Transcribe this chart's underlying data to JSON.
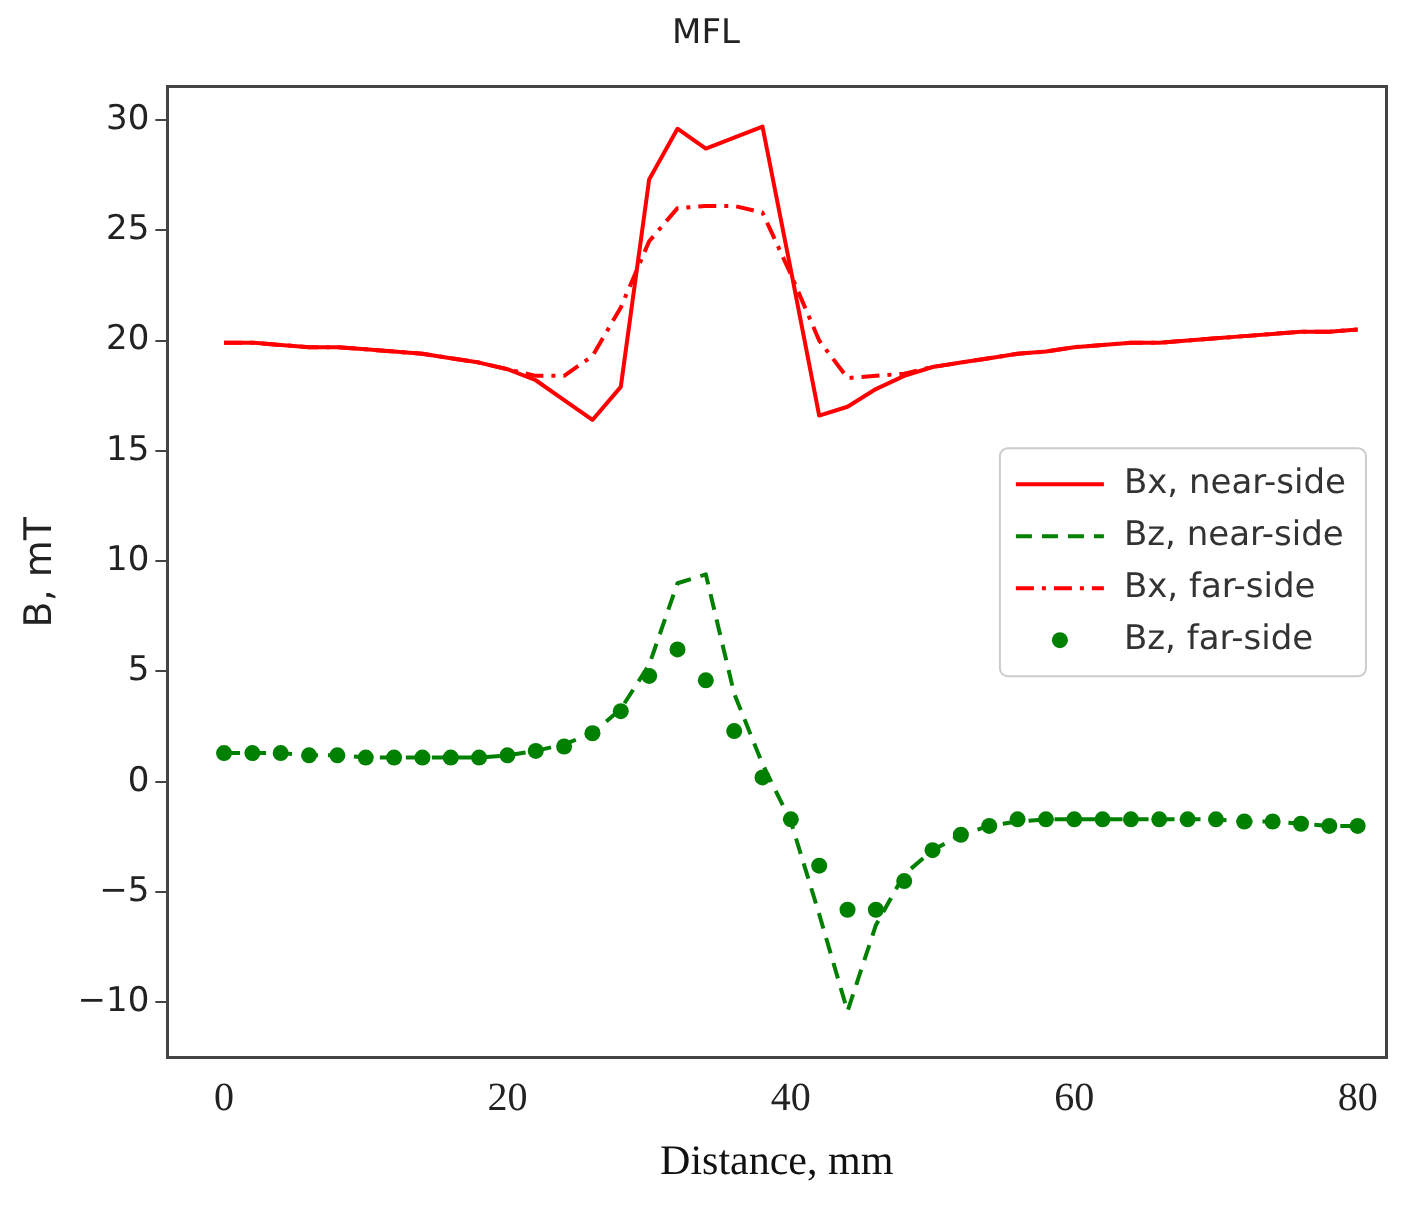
{
  "chart_data": {
    "type": "line",
    "title": "MFL",
    "xlabel": "Distance, mm",
    "ylabel": "B, mT",
    "x": [
      0,
      2,
      4,
      6,
      8,
      10,
      12,
      14,
      16,
      18,
      20,
      22,
      24,
      26,
      28,
      30,
      32,
      34,
      36,
      38,
      40,
      42,
      44,
      46,
      48,
      50,
      52,
      54,
      56,
      58,
      60,
      62,
      64,
      66,
      68,
      70,
      72,
      74,
      76,
      78,
      80
    ],
    "xlim": [
      -4,
      82
    ],
    "xticks": [
      0,
      20,
      40,
      60,
      80
    ],
    "ylim": [
      -12.5,
      31.5
    ],
    "yticks": [
      -10,
      -5,
      0,
      5,
      10,
      15,
      20,
      25,
      30
    ],
    "grid": false,
    "legend": "right",
    "series": [
      {
        "name": "Bx, near-side",
        "type": "line",
        "line_style": "solid",
        "marker": "none",
        "color": "#ff0000",
        "values": [
          19.9,
          19.9,
          19.8,
          19.7,
          19.7,
          19.6,
          19.5,
          19.4,
          19.2,
          19.0,
          18.7,
          18.2,
          17.3,
          16.4,
          17.9,
          27.3,
          29.6,
          28.7,
          29.2,
          29.7,
          23.2,
          16.6,
          17.0,
          17.8,
          18.4,
          18.8,
          19.0,
          19.2,
          19.4,
          19.5,
          19.7,
          19.8,
          19.9,
          19.9,
          20.0,
          20.1,
          20.2,
          20.3,
          20.4,
          20.4,
          20.5
        ]
      },
      {
        "name": "Bz, near-side",
        "type": "line",
        "line_style": "dashed",
        "marker": "none",
        "color": "#008000",
        "values": [
          1.3,
          1.3,
          1.3,
          1.2,
          1.2,
          1.1,
          1.1,
          1.1,
          1.1,
          1.1,
          1.2,
          1.4,
          1.7,
          2.2,
          3.3,
          5.3,
          9.0,
          9.4,
          4.0,
          0.8,
          -1.8,
          -6.0,
          -10.4,
          -6.5,
          -4.2,
          -3.1,
          -2.4,
          -2.0,
          -1.8,
          -1.7,
          -1.7,
          -1.7,
          -1.7,
          -1.7,
          -1.7,
          -1.7,
          -1.8,
          -1.8,
          -1.9,
          -2.0,
          -2.0
        ]
      },
      {
        "name": "Bx, far-side",
        "type": "line",
        "line_style": "dashdot",
        "marker": "none",
        "color": "#ff0000",
        "values": [
          19.9,
          19.9,
          19.8,
          19.7,
          19.7,
          19.6,
          19.5,
          19.4,
          19.2,
          19.0,
          18.7,
          18.4,
          18.4,
          19.3,
          21.5,
          24.5,
          26.0,
          26.1,
          26.1,
          25.8,
          23.0,
          20.0,
          18.3,
          18.4,
          18.5,
          18.8,
          19.0,
          19.2,
          19.4,
          19.5,
          19.7,
          19.8,
          19.9,
          19.9,
          20.0,
          20.1,
          20.2,
          20.3,
          20.4,
          20.4,
          20.5
        ]
      },
      {
        "name": "Bz, far-side",
        "type": "scatter",
        "marker": "circle",
        "color": "#008000",
        "values": [
          1.3,
          1.3,
          1.3,
          1.2,
          1.2,
          1.1,
          1.1,
          1.1,
          1.1,
          1.1,
          1.2,
          1.4,
          1.6,
          2.2,
          3.2,
          4.8,
          6.0,
          4.6,
          2.3,
          0.2,
          -1.7,
          -3.8,
          -5.8,
          -5.8,
          -4.5,
          -3.1,
          -2.4,
          -2.0,
          -1.7,
          -1.7,
          -1.7,
          -1.7,
          -1.7,
          -1.7,
          -1.7,
          -1.7,
          -1.8,
          -1.8,
          -1.9,
          -2.0,
          -2.0
        ]
      }
    ]
  }
}
